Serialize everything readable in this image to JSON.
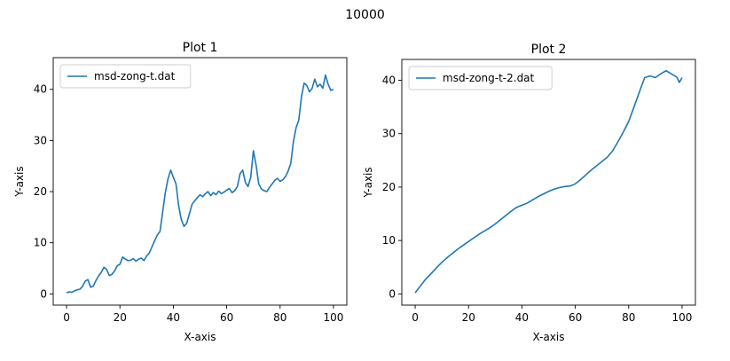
{
  "figure": {
    "suptitle": "10000",
    "line_color": "#1f77b4"
  },
  "chart_data": [
    {
      "type": "line",
      "title": "Plot 1",
      "xlabel": "X-axis",
      "ylabel": "Y-axis",
      "xlim": [
        -5,
        105
      ],
      "ylim": [
        -2.2,
        46.2
      ],
      "xticks": [
        0,
        20,
        40,
        60,
        80,
        100
      ],
      "yticks": [
        0,
        10,
        20,
        30,
        40
      ],
      "legend": {
        "label": "msd-zong-t.dat",
        "loc": "upper left"
      },
      "series": [
        {
          "name": "msd-zong-t.dat",
          "x": [
            0,
            1,
            2,
            3,
            4,
            5,
            6,
            7,
            8,
            9,
            10,
            11,
            12,
            13,
            14,
            15,
            16,
            17,
            18,
            19,
            20,
            21,
            22,
            23,
            24,
            25,
            26,
            27,
            28,
            29,
            30,
            31,
            32,
            33,
            34,
            35,
            36,
            37,
            38,
            39,
            40,
            41,
            42,
            43,
            44,
            45,
            46,
            47,
            48,
            49,
            50,
            51,
            52,
            53,
            54,
            55,
            56,
            57,
            58,
            59,
            60,
            61,
            62,
            63,
            64,
            65,
            66,
            67,
            68,
            69,
            70,
            71,
            72,
            73,
            74,
            75,
            76,
            77,
            78,
            79,
            80,
            81,
            82,
            83,
            84,
            85,
            86,
            87,
            88,
            89,
            90,
            91,
            92,
            93,
            94,
            95,
            96,
            97,
            98,
            99,
            100
          ],
          "y": [
            0.2,
            0.4,
            0.3,
            0.6,
            0.8,
            0.9,
            1.5,
            2.5,
            2.8,
            1.3,
            1.5,
            2.6,
            3.5,
            4.2,
            5.2,
            4.8,
            3.6,
            3.8,
            4.5,
            5.5,
            5.8,
            7.2,
            6.8,
            6.5,
            6.6,
            6.9,
            6.4,
            6.8,
            7.0,
            6.5,
            7.4,
            8.0,
            9.2,
            10.4,
            11.5,
            12.2,
            16.0,
            19.8,
            22.5,
            24.2,
            22.8,
            21.5,
            17.2,
            14.5,
            13.2,
            13.8,
            15.6,
            17.5,
            18.2,
            18.8,
            19.4,
            19.0,
            19.6,
            20.0,
            19.2,
            19.8,
            19.4,
            20.1,
            19.6,
            19.9,
            20.3,
            20.6,
            19.8,
            20.2,
            21.0,
            23.5,
            24.2,
            21.8,
            21.0,
            22.8,
            28.0,
            25.2,
            21.5,
            20.5,
            20.2,
            20.0,
            20.8,
            21.5,
            22.2,
            22.6,
            22.0,
            22.3,
            22.9,
            24.0,
            25.5,
            29.8,
            32.5,
            34.0,
            38.5,
            41.2,
            40.8,
            39.5,
            40.2,
            42.0,
            40.5,
            41.0,
            40.2,
            42.8,
            41.0,
            39.8,
            40.0
          ]
        }
      ]
    },
    {
      "type": "line",
      "title": "Plot 2",
      "xlabel": "X-axis",
      "ylabel": "Y-axis",
      "xlim": [
        -5,
        105
      ],
      "ylim": [
        -2.1,
        43.9
      ],
      "xticks": [
        0,
        20,
        40,
        60,
        80,
        100
      ],
      "yticks": [
        0,
        10,
        20,
        30,
        40
      ],
      "legend": {
        "label": "msd-zong-t-2.dat",
        "loc": "upper left"
      },
      "series": [
        {
          "name": "msd-zong-t-2.dat",
          "x": [
            0,
            2,
            4,
            6,
            8,
            10,
            12,
            14,
            16,
            18,
            20,
            22,
            24,
            26,
            28,
            30,
            32,
            34,
            36,
            38,
            40,
            42,
            44,
            46,
            48,
            50,
            52,
            54,
            56,
            58,
            60,
            62,
            64,
            66,
            68,
            70,
            72,
            74,
            76,
            78,
            80,
            82,
            84,
            86,
            88,
            90,
            92,
            94,
            96,
            98,
            99,
            100
          ],
          "y": [
            0.2,
            1.5,
            2.8,
            3.8,
            4.9,
            5.9,
            6.8,
            7.6,
            8.4,
            9.1,
            9.8,
            10.5,
            11.2,
            11.8,
            12.4,
            13.1,
            13.9,
            14.7,
            15.5,
            16.2,
            16.6,
            17.0,
            17.6,
            18.2,
            18.7,
            19.2,
            19.6,
            19.9,
            20.1,
            20.2,
            20.6,
            21.4,
            22.3,
            23.2,
            24.0,
            24.8,
            25.6,
            26.8,
            28.5,
            30.3,
            32.3,
            35.0,
            37.8,
            40.5,
            40.8,
            40.5,
            41.2,
            41.8,
            41.2,
            40.6,
            39.6,
            40.5
          ]
        }
      ]
    }
  ]
}
